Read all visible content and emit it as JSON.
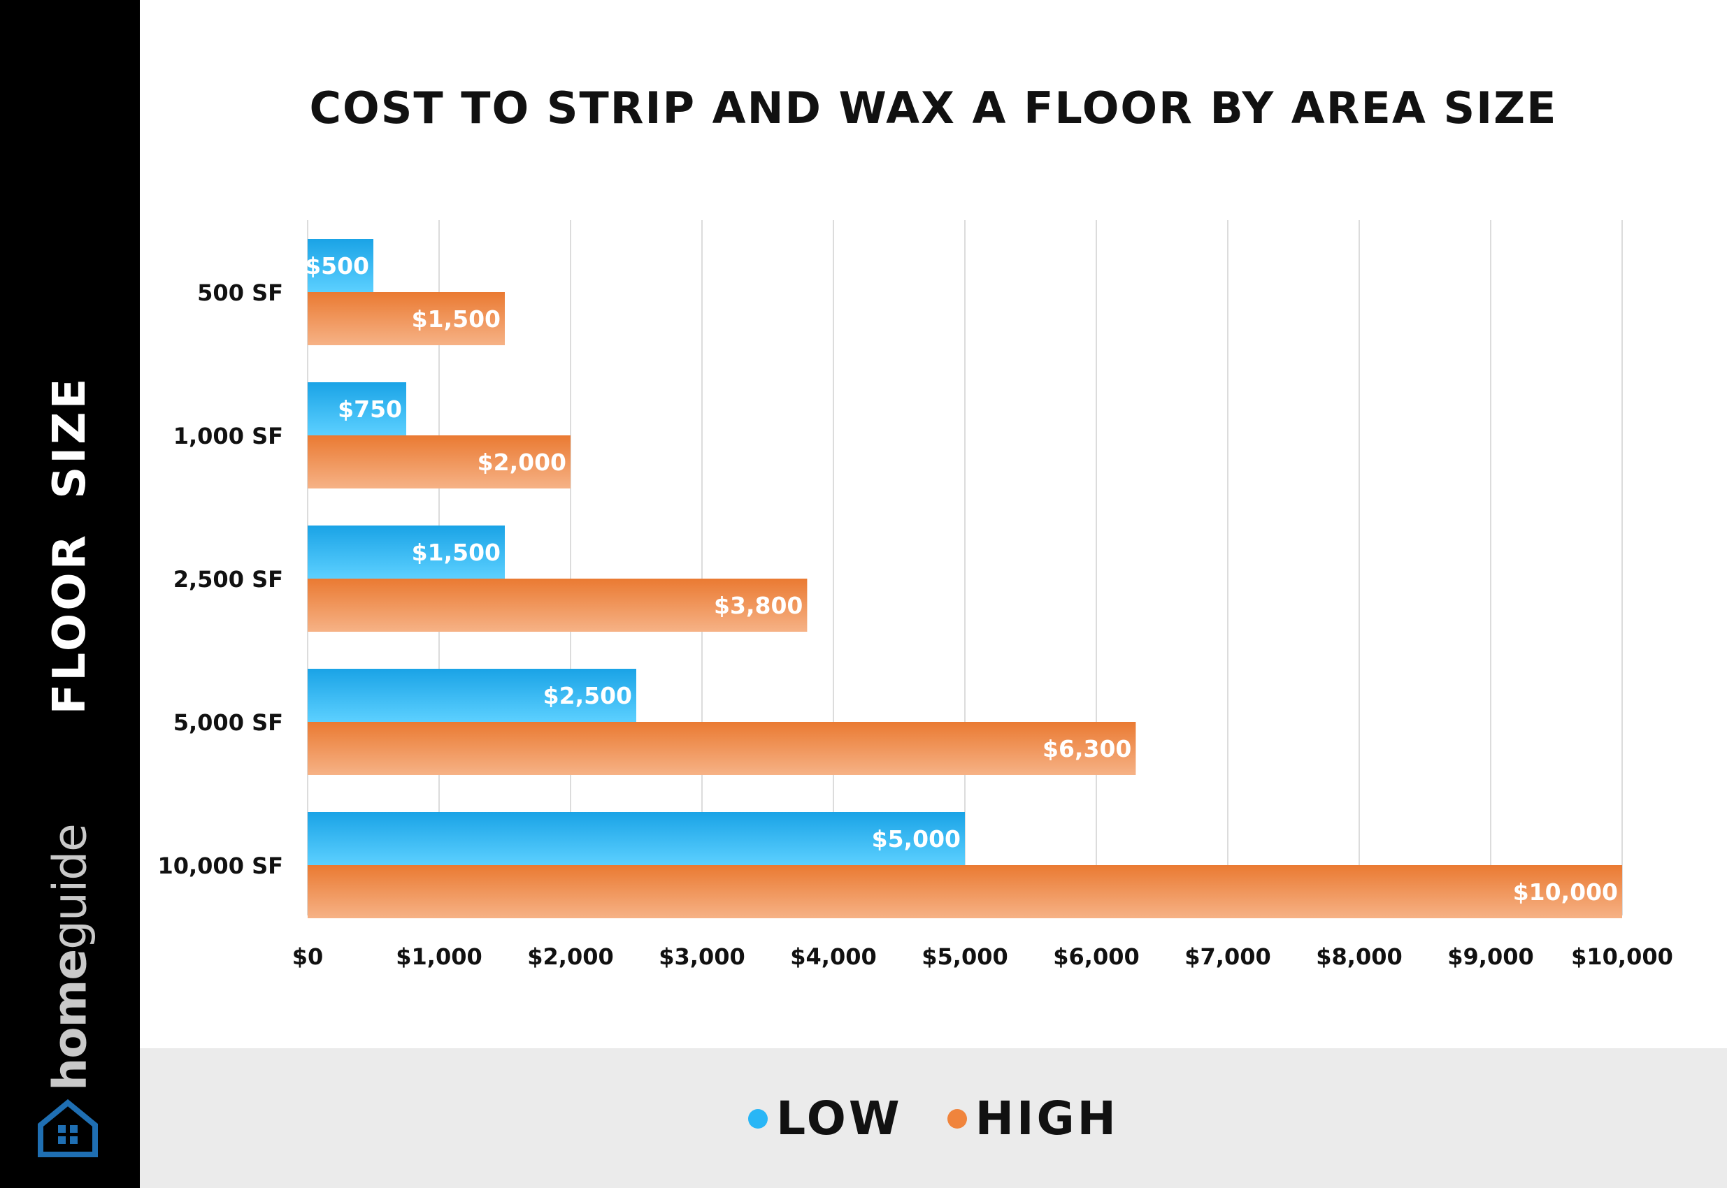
{
  "brand": {
    "part1": "home",
    "part2": "guide",
    "logo_icon": "house-grid-icon"
  },
  "colors": {
    "low": "#29b6f6",
    "high": "#f0843c",
    "sidebar": "#000000",
    "legend_bg": "#ebebeb",
    "grid": "#dcdcdc"
  },
  "chart_data": {
    "type": "bar",
    "orientation": "horizontal",
    "title": "COST TO STRIP AND WAX A FLOOR BY AREA SIZE",
    "ylabel": "FLOOR SIZE",
    "xlabel": "",
    "categories": [
      "500 SF",
      "1,000 SF",
      "2,500 SF",
      "5,000 SF",
      "10,000 SF"
    ],
    "series": [
      {
        "name": "LOW",
        "values": [
          500,
          750,
          1500,
          2500,
          5000
        ],
        "labels": [
          "$500",
          "$750",
          "$1,500",
          "$2,500",
          "$5,000"
        ]
      },
      {
        "name": "HIGH",
        "values": [
          1500,
          2000,
          3800,
          6300,
          10000
        ],
        "labels": [
          "$1,500",
          "$2,000",
          "$3,800",
          "$6,300",
          "$10,000"
        ]
      }
    ],
    "xlim": [
      0,
      10000
    ],
    "xticks": [
      0,
      1000,
      2000,
      3000,
      4000,
      5000,
      6000,
      7000,
      8000,
      9000,
      10000
    ],
    "xtick_labels": [
      "$0",
      "$1,000",
      "$2,000",
      "$3,000",
      "$4,000",
      "$5,000",
      "$6,000",
      "$7,000",
      "$8,000",
      "$9,000",
      "$10,000"
    ],
    "grid": true,
    "legend_position": "bottom"
  }
}
